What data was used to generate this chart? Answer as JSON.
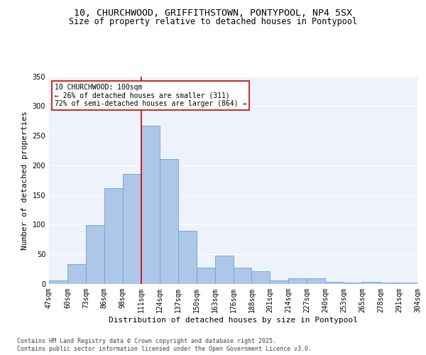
{
  "title_line1": "10, CHURCHWOOD, GRIFFITHSTOWN, PONTYPOOL, NP4 5SX",
  "title_line2": "Size of property relative to detached houses in Pontypool",
  "xlabel": "Distribution of detached houses by size in Pontypool",
  "ylabel": "Number of detached properties",
  "categories": [
    "47sqm",
    "60sqm",
    "73sqm",
    "86sqm",
    "98sqm",
    "111sqm",
    "124sqm",
    "137sqm",
    "150sqm",
    "163sqm",
    "176sqm",
    "188sqm",
    "201sqm",
    "214sqm",
    "227sqm",
    "240sqm",
    "253sqm",
    "265sqm",
    "278sqm",
    "291sqm",
    "304sqm"
  ],
  "values": [
    6,
    33,
    99,
    161,
    185,
    267,
    211,
    90,
    27,
    48,
    27,
    21,
    6,
    9,
    10,
    4,
    2,
    3,
    2,
    2
  ],
  "bar_color": "#aec6e8",
  "bar_edge_color": "#6aa3d5",
  "background_color": "#eef2fb",
  "grid_color": "#ffffff",
  "annotation_text": "10 CHURCHWOOD: 100sqm\n← 26% of detached houses are smaller (311)\n72% of semi-detached houses are larger (864) →",
  "vline_color": "#cc0000",
  "vline_x": 5.0,
  "ylim": [
    0,
    350
  ],
  "yticks": [
    0,
    50,
    100,
    150,
    200,
    250,
    300,
    350
  ],
  "footer_line1": "Contains HM Land Registry data © Crown copyright and database right 2025.",
  "footer_line2": "Contains public sector information licensed under the Open Government Licence v3.0.",
  "title_fontsize": 9.5,
  "subtitle_fontsize": 8.5,
  "axis_label_fontsize": 8,
  "tick_fontsize": 7,
  "annotation_fontsize": 7,
  "footer_fontsize": 6
}
